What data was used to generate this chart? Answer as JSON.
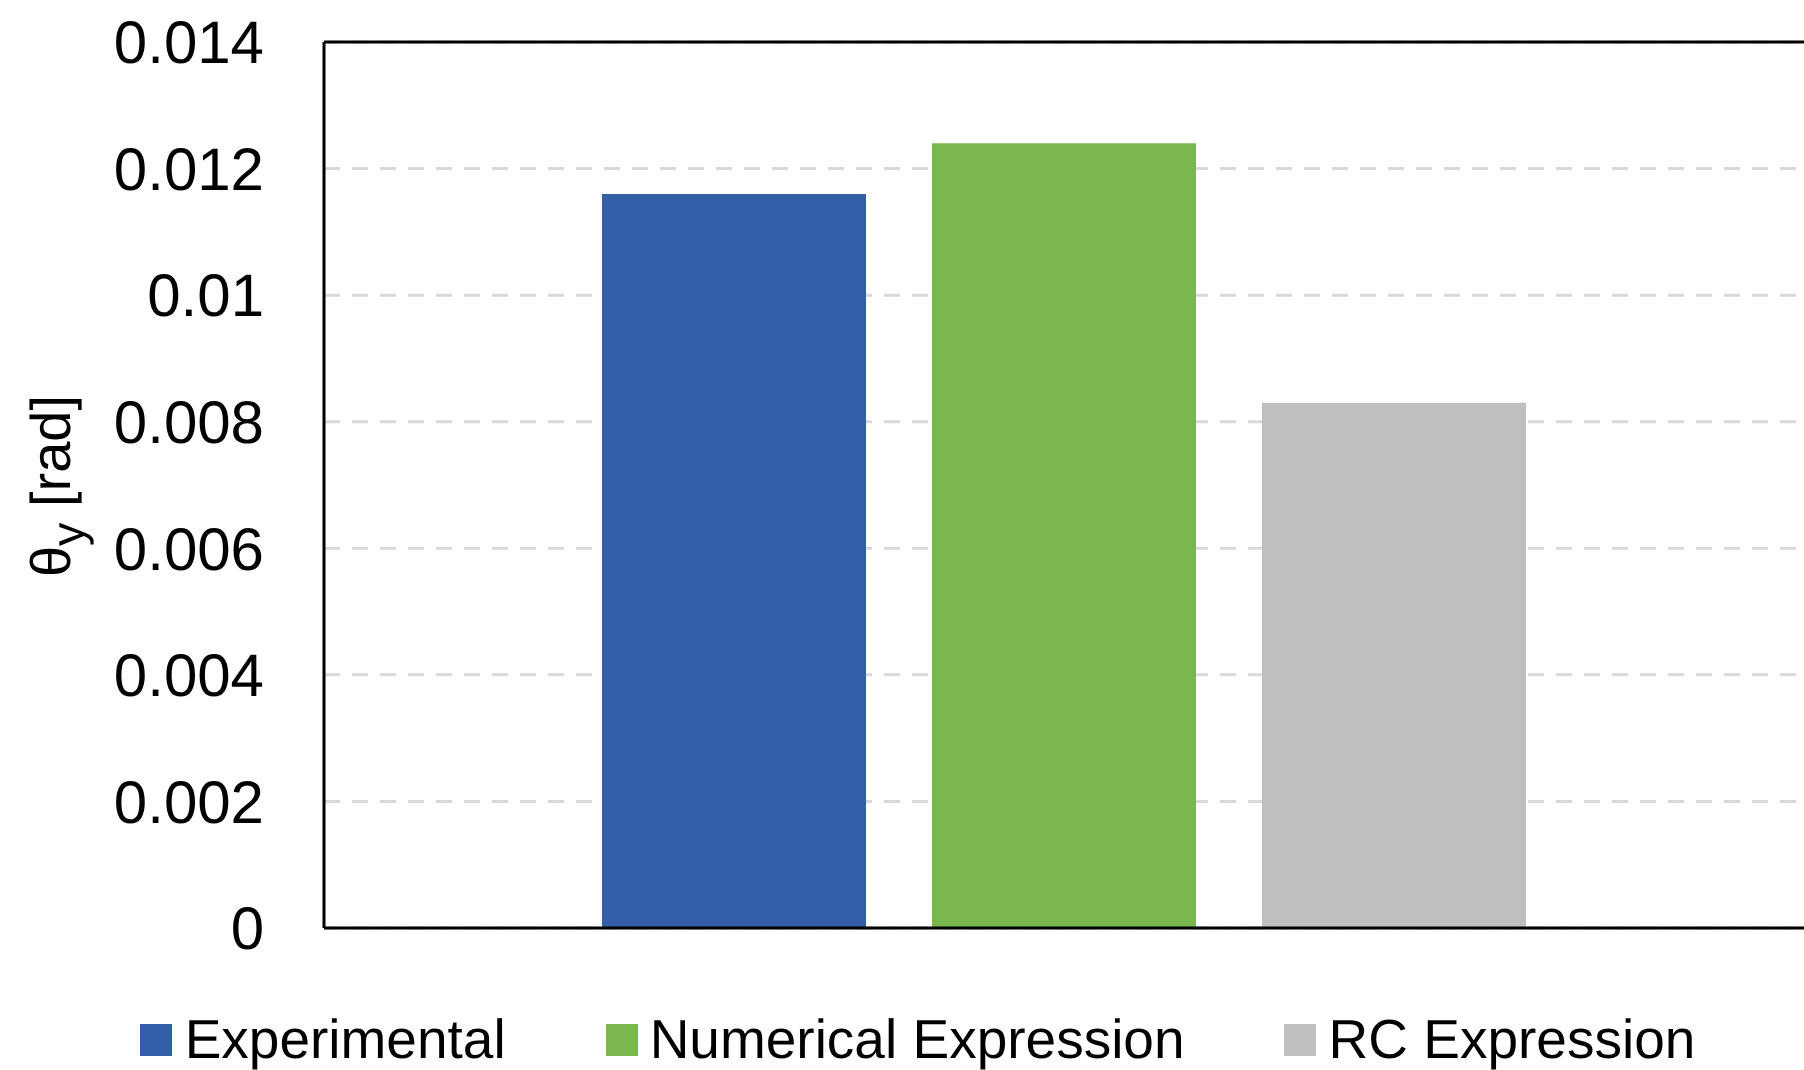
{
  "chart_data": {
    "type": "bar",
    "categories": [
      null
    ],
    "ylabel": "θ$_{y}$ [rad]",
    "series": [
      {
        "name": "Experimental",
        "color": "#355ea8",
        "values": [
          0.0116
        ]
      },
      {
        "name": "Numerical Expression",
        "color": "#7ab74f",
        "values": [
          0.0124
        ]
      },
      {
        "name": "RC Expression",
        "color": "#bfbfbf",
        "values": [
          0.0083
        ]
      }
    ],
    "ylim": [
      0,
      0.014
    ],
    "yticks": [
      0,
      0.002,
      0.004,
      0.006,
      0.008,
      0.01,
      0.012,
      0.014
    ],
    "grid": "y",
    "legend": "bottom"
  }
}
